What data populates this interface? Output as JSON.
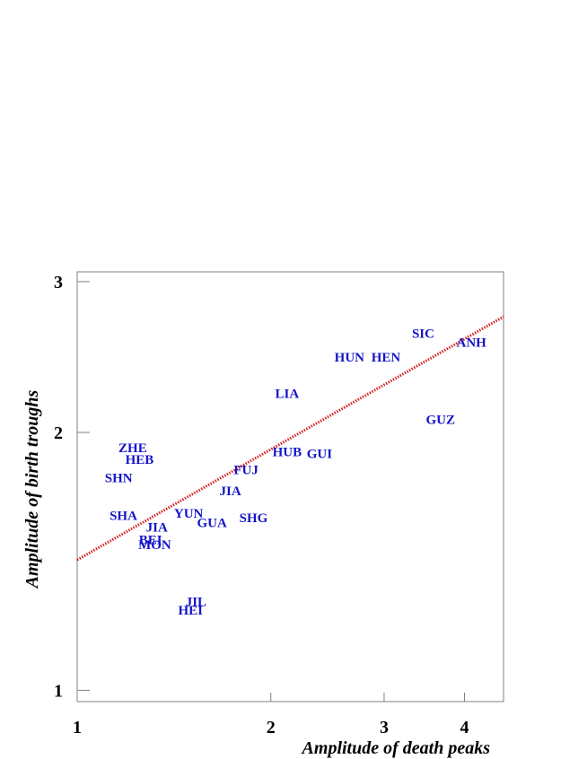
{
  "chart_data": {
    "type": "scatter",
    "title": "",
    "xlabel": "Amplitude of death peaks",
    "ylabel": "Amplitude of birth troughs",
    "x_scale": "log",
    "y_scale": "log",
    "xlim": [
      1,
      4.6
    ],
    "ylim": [
      0.97,
      3.08
    ],
    "x_ticks": [
      1,
      2,
      3,
      4
    ],
    "y_ticks": [
      1,
      2,
      3
    ],
    "grid": false,
    "legend": "none",
    "colors": {
      "points": "#1414c8",
      "fit_line": "#d42020",
      "axes": "#808080"
    },
    "fit_line": {
      "style": "dotted",
      "x": [
        1,
        4.6
      ],
      "y": [
        1.42,
        2.73
      ]
    },
    "points": [
      {
        "label": "SIC",
        "x": 3.45,
        "y": 2.61
      },
      {
        "label": "ANH",
        "x": 4.1,
        "y": 2.55
      },
      {
        "label": "HUN",
        "x": 2.65,
        "y": 2.45
      },
      {
        "label": "HEN",
        "x": 3.02,
        "y": 2.45
      },
      {
        "label": "LIA",
        "x": 2.12,
        "y": 2.22
      },
      {
        "label": "GUZ",
        "x": 3.67,
        "y": 2.07
      },
      {
        "label": "ZHE",
        "x": 1.22,
        "y": 1.92
      },
      {
        "label": "HUB",
        "x": 2.12,
        "y": 1.9
      },
      {
        "label": "GUI",
        "x": 2.38,
        "y": 1.89
      },
      {
        "label": "HEB",
        "x": 1.25,
        "y": 1.86
      },
      {
        "label": "FUJ",
        "x": 1.83,
        "y": 1.81
      },
      {
        "label": "SHN",
        "x": 1.16,
        "y": 1.77
      },
      {
        "label": "JIA",
        "x": 1.73,
        "y": 1.71
      },
      {
        "label": "SHA",
        "x": 1.18,
        "y": 1.6
      },
      {
        "label": "YUN",
        "x": 1.49,
        "y": 1.61
      },
      {
        "label": "SHG",
        "x": 1.88,
        "y": 1.59
      },
      {
        "label": "GUA",
        "x": 1.62,
        "y": 1.57
      },
      {
        "label": "JIA",
        "x": 1.33,
        "y": 1.55
      },
      {
        "label": "BEI",
        "x": 1.3,
        "y": 1.5
      },
      {
        "label": "MON",
        "x": 1.32,
        "y": 1.48
      },
      {
        "label": "JIL",
        "x": 1.53,
        "y": 1.27
      },
      {
        "label": "HEI",
        "x": 1.5,
        "y": 1.24
      }
    ]
  }
}
